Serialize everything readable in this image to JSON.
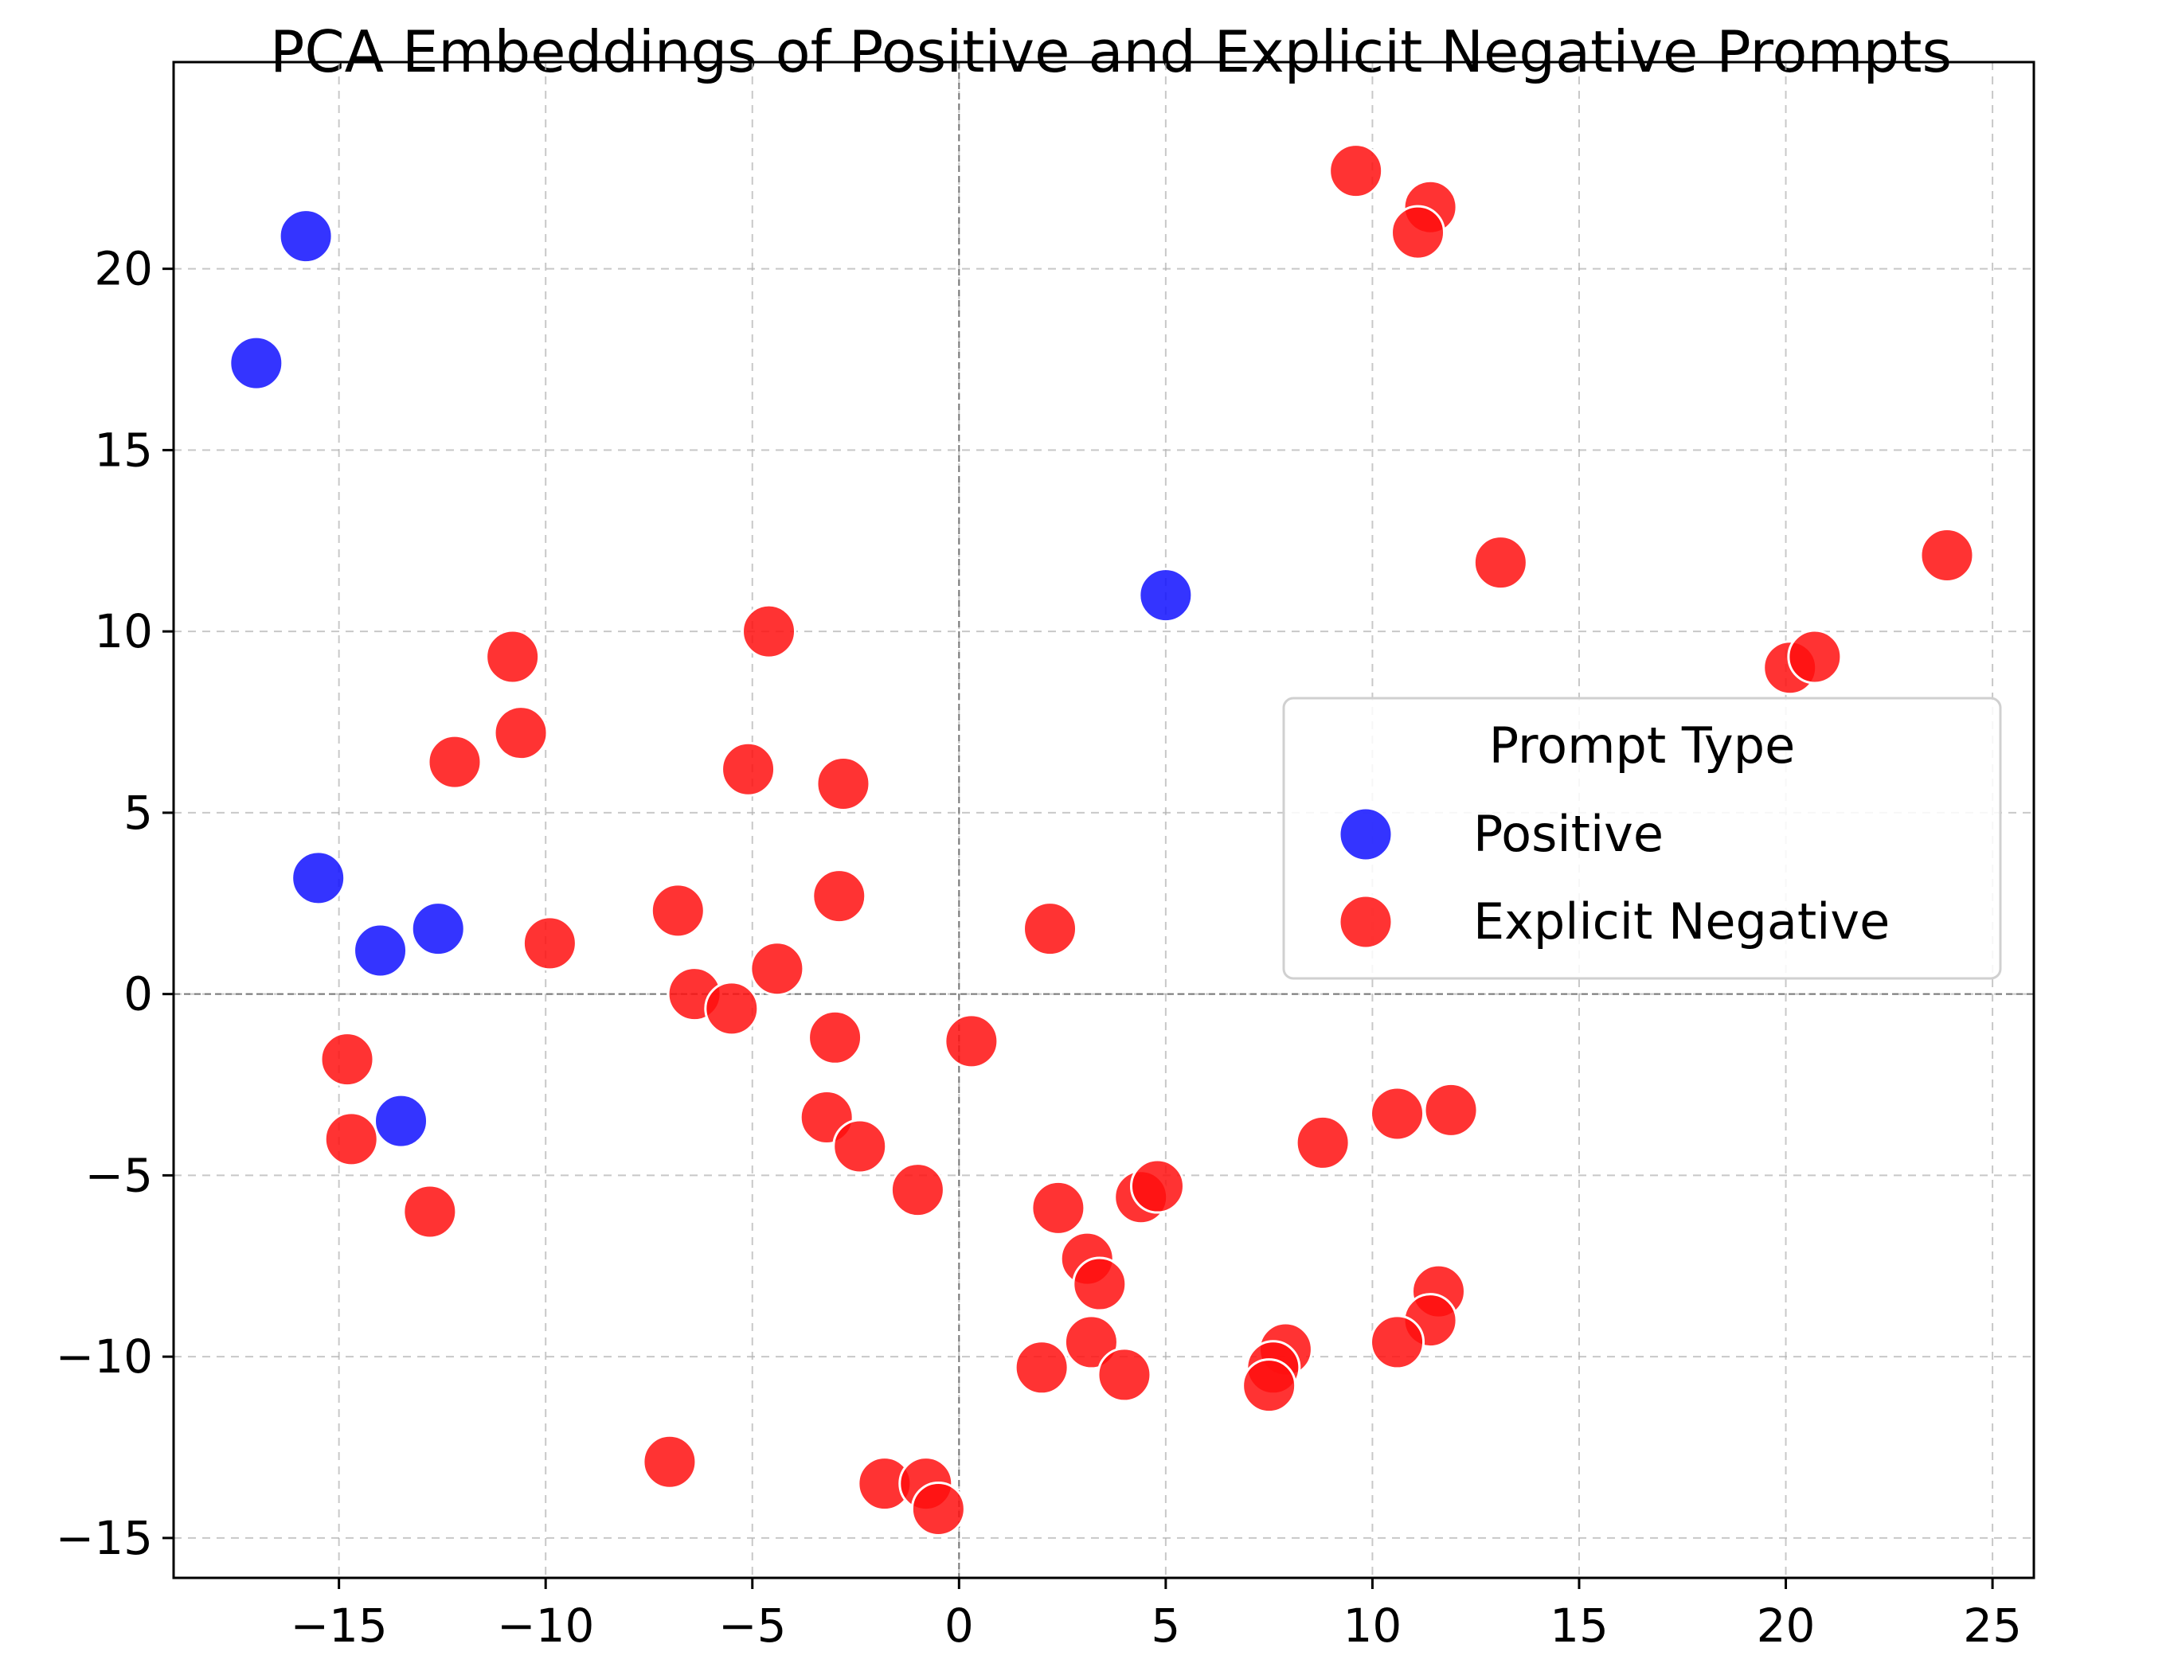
{
  "chart_data": {
    "type": "scatter",
    "title": "PCA Embeddings of Positive and Explicit Negative Prompts",
    "xlabel": "",
    "ylabel": "",
    "xlim": [
      -19,
      26
    ],
    "ylim": [
      -16.1,
      25.7
    ],
    "xticks": [
      -15,
      -10,
      -5,
      0,
      5,
      10,
      15,
      20,
      25
    ],
    "yticks": [
      -15,
      -10,
      -5,
      0,
      5,
      10,
      15,
      20
    ],
    "xtick_labels": [
      "−15",
      "−10",
      "−5",
      "0",
      "5",
      "10",
      "15",
      "20",
      "25"
    ],
    "ytick_labels": [
      "−15",
      "−10",
      "−5",
      "0",
      "5",
      "10",
      "15",
      "20"
    ],
    "grid": true,
    "zero_lines": true,
    "legend": {
      "title": "Prompt Type",
      "placement": "center-right"
    },
    "series": [
      {
        "name": "Positive",
        "color": "#1010ff",
        "points": [
          [
            -15.8,
            20.9
          ],
          [
            -17.0,
            17.4
          ],
          [
            -15.5,
            3.2
          ],
          [
            -12.6,
            1.8
          ],
          [
            -14.0,
            1.2
          ],
          [
            -13.5,
            -3.5
          ],
          [
            5.0,
            11.0
          ]
        ]
      },
      {
        "name": "Explicit Negative",
        "color": "#ff0f0f",
        "points": [
          [
            9.6,
            22.7
          ],
          [
            11.4,
            21.7
          ],
          [
            11.1,
            21.0
          ],
          [
            13.1,
            11.9
          ],
          [
            23.9,
            12.1
          ],
          [
            20.1,
            9.0
          ],
          [
            20.7,
            9.3
          ],
          [
            -4.6,
            10.0
          ],
          [
            -10.8,
            9.3
          ],
          [
            -10.6,
            7.2
          ],
          [
            -12.2,
            6.4
          ],
          [
            -5.1,
            6.2
          ],
          [
            -2.8,
            5.8
          ],
          [
            -2.9,
            2.7
          ],
          [
            -6.8,
            2.3
          ],
          [
            -9.9,
            1.4
          ],
          [
            -4.4,
            0.7
          ],
          [
            2.2,
            1.8
          ],
          [
            -6.4,
            0.0
          ],
          [
            -5.5,
            -0.4
          ],
          [
            -3.0,
            -1.2
          ],
          [
            0.3,
            -1.3
          ],
          [
            -14.8,
            -1.8
          ],
          [
            -14.7,
            -4.0
          ],
          [
            -3.2,
            -3.4
          ],
          [
            -2.4,
            -4.2
          ],
          [
            -1.0,
            -5.4
          ],
          [
            -12.8,
            -6.0
          ],
          [
            2.4,
            -5.9
          ],
          [
            4.4,
            -5.6
          ],
          [
            4.8,
            -5.3
          ],
          [
            8.8,
            -4.1
          ],
          [
            10.6,
            -3.3
          ],
          [
            11.9,
            -3.2
          ],
          [
            3.1,
            -7.3
          ],
          [
            3.4,
            -8.0
          ],
          [
            11.6,
            -8.2
          ],
          [
            11.4,
            -9.0
          ],
          [
            10.6,
            -9.6
          ],
          [
            3.2,
            -9.6
          ],
          [
            7.9,
            -9.8
          ],
          [
            7.6,
            -10.3
          ],
          [
            7.5,
            -10.8
          ],
          [
            2.0,
            -10.3
          ],
          [
            4.0,
            -10.5
          ],
          [
            -7.0,
            -12.9
          ],
          [
            -1.8,
            -13.5
          ],
          [
            -0.8,
            -13.5
          ],
          [
            -0.5,
            -14.2
          ]
        ]
      }
    ]
  }
}
